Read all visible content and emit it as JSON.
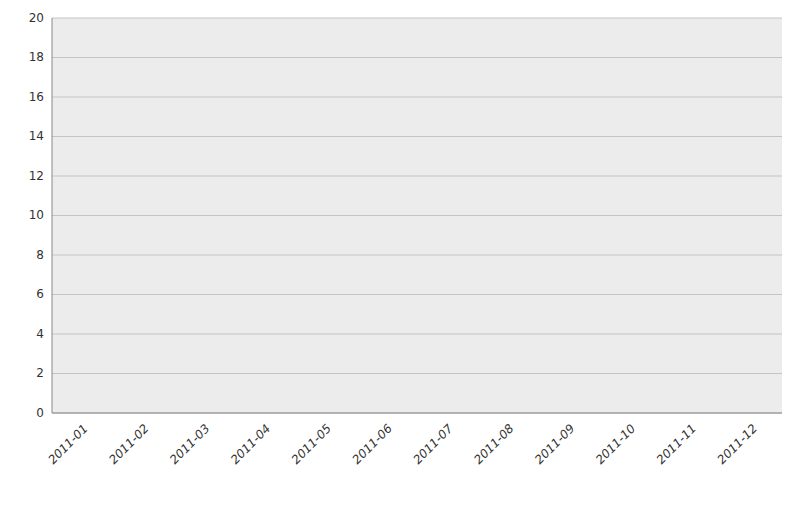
{
  "chart_data": {
    "type": "line",
    "categories": [
      "2011-01",
      "2011-02",
      "2011-03",
      "2011-04",
      "2011-05",
      "2011-06",
      "2011-07",
      "2011-08",
      "2011-09",
      "2011-10",
      "2011-11",
      "2011-12"
    ],
    "ylim": [
      0,
      20
    ],
    "yticks": [
      0,
      2,
      4,
      6,
      8,
      10,
      12,
      14,
      16,
      18,
      20
    ],
    "grid": true
  }
}
